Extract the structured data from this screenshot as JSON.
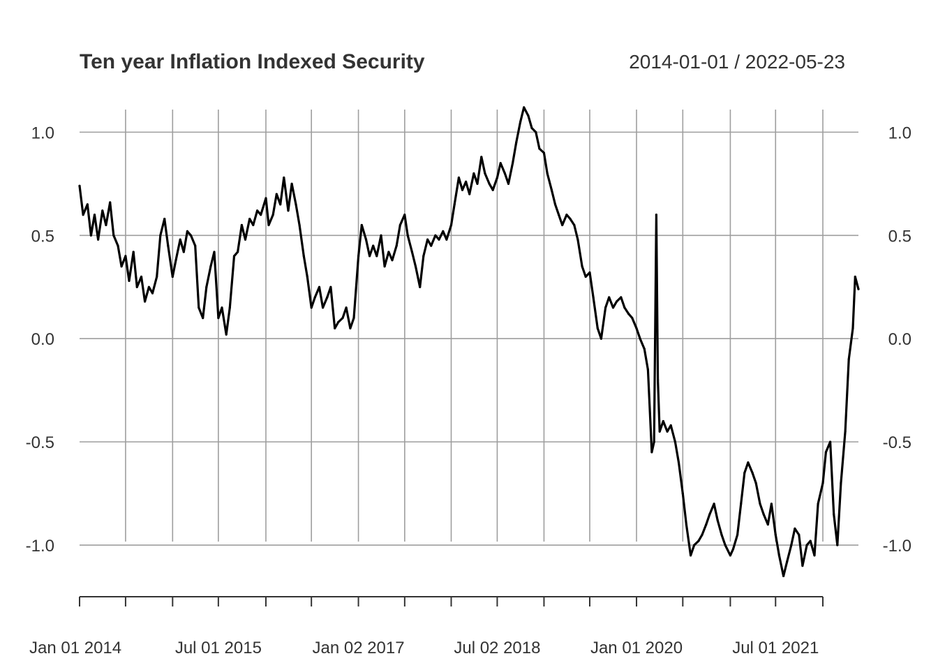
{
  "chart_data": {
    "type": "line",
    "title": "Ten year Inflation Indexed Security",
    "date_range_label": "2014-01-01 / 2022-05-23",
    "x_range": [
      "2014-01-01",
      "2022-05-23"
    ],
    "ylim": [
      -1.25,
      1.15
    ],
    "y_ticks": [
      {
        "value": 1.0,
        "label": "1.0"
      },
      {
        "value": 0.5,
        "label": "0.5"
      },
      {
        "value": 0.0,
        "label": "0.0"
      },
      {
        "value": -0.5,
        "label": "-0.5"
      },
      {
        "value": -1.0,
        "label": "-1.0"
      }
    ],
    "x_tick_dates": [
      "2014-01-01",
      "2014-07-01",
      "2015-01-02",
      "2015-07-01",
      "2016-01-04",
      "2016-07-01",
      "2017-01-02",
      "2017-07-03",
      "2018-01-02",
      "2018-07-02",
      "2019-01-02",
      "2019-07-01",
      "2020-01-01",
      "2020-07-01",
      "2021-01-04",
      "2021-07-01",
      "2022-01-03"
    ],
    "x_labels": [
      {
        "date": "2014-01-01",
        "label": "Jan 01 2014"
      },
      {
        "date": "2015-07-01",
        "label": "Jul 01 2015"
      },
      {
        "date": "2017-01-02",
        "label": "Jan 02 2017"
      },
      {
        "date": "2018-07-02",
        "label": "Jul 02 2018"
      },
      {
        "date": "2020-01-01",
        "label": "Jan 01 2020"
      },
      {
        "date": "2021-07-01",
        "label": "Jul 01 2021"
      }
    ],
    "grid": true,
    "series": [
      {
        "points": [
          [
            "2014-01-01",
            0.74
          ],
          [
            "2014-01-15",
            0.6
          ],
          [
            "2014-02-01",
            0.65
          ],
          [
            "2014-02-15",
            0.5
          ],
          [
            "2014-03-01",
            0.6
          ],
          [
            "2014-03-15",
            0.48
          ],
          [
            "2014-04-01",
            0.62
          ],
          [
            "2014-04-15",
            0.55
          ],
          [
            "2014-05-01",
            0.66
          ],
          [
            "2014-05-15",
            0.5
          ],
          [
            "2014-06-01",
            0.45
          ],
          [
            "2014-06-15",
            0.35
          ],
          [
            "2014-07-01",
            0.4
          ],
          [
            "2014-07-15",
            0.28
          ],
          [
            "2014-08-01",
            0.42
          ],
          [
            "2014-08-15",
            0.25
          ],
          [
            "2014-09-01",
            0.3
          ],
          [
            "2014-09-15",
            0.18
          ],
          [
            "2014-10-01",
            0.25
          ],
          [
            "2014-10-15",
            0.22
          ],
          [
            "2014-11-01",
            0.3
          ],
          [
            "2014-11-15",
            0.5
          ],
          [
            "2014-12-01",
            0.58
          ],
          [
            "2014-12-15",
            0.45
          ],
          [
            "2015-01-02",
            0.3
          ],
          [
            "2015-01-15",
            0.38
          ],
          [
            "2015-02-01",
            0.48
          ],
          [
            "2015-02-15",
            0.42
          ],
          [
            "2015-03-01",
            0.52
          ],
          [
            "2015-03-15",
            0.5
          ],
          [
            "2015-04-01",
            0.45
          ],
          [
            "2015-04-15",
            0.15
          ],
          [
            "2015-05-01",
            0.1
          ],
          [
            "2015-05-15",
            0.25
          ],
          [
            "2015-06-01",
            0.35
          ],
          [
            "2015-06-15",
            0.42
          ],
          [
            "2015-07-01",
            0.1
          ],
          [
            "2015-07-15",
            0.15
          ],
          [
            "2015-08-01",
            0.02
          ],
          [
            "2015-08-15",
            0.15
          ],
          [
            "2015-09-01",
            0.4
          ],
          [
            "2015-09-15",
            0.42
          ],
          [
            "2015-10-01",
            0.55
          ],
          [
            "2015-10-15",
            0.48
          ],
          [
            "2015-11-01",
            0.58
          ],
          [
            "2015-11-15",
            0.55
          ],
          [
            "2015-12-01",
            0.62
          ],
          [
            "2015-12-15",
            0.6
          ],
          [
            "2016-01-04",
            0.68
          ],
          [
            "2016-01-15",
            0.55
          ],
          [
            "2016-02-01",
            0.6
          ],
          [
            "2016-02-15",
            0.7
          ],
          [
            "2016-03-01",
            0.65
          ],
          [
            "2016-03-15",
            0.78
          ],
          [
            "2016-04-01",
            0.62
          ],
          [
            "2016-04-15",
            0.75
          ],
          [
            "2016-05-01",
            0.65
          ],
          [
            "2016-05-15",
            0.55
          ],
          [
            "2016-06-01",
            0.4
          ],
          [
            "2016-06-15",
            0.3
          ],
          [
            "2016-07-01",
            0.15
          ],
          [
            "2016-07-15",
            0.2
          ],
          [
            "2016-08-01",
            0.25
          ],
          [
            "2016-08-15",
            0.15
          ],
          [
            "2016-09-01",
            0.2
          ],
          [
            "2016-09-15",
            0.25
          ],
          [
            "2016-10-01",
            0.05
          ],
          [
            "2016-10-15",
            0.08
          ],
          [
            "2016-11-01",
            0.1
          ],
          [
            "2016-11-15",
            0.15
          ],
          [
            "2016-12-01",
            0.05
          ],
          [
            "2016-12-15",
            0.1
          ],
          [
            "2017-01-02",
            0.4
          ],
          [
            "2017-01-15",
            0.55
          ],
          [
            "2017-02-01",
            0.48
          ],
          [
            "2017-02-15",
            0.4
          ],
          [
            "2017-03-01",
            0.45
          ],
          [
            "2017-03-15",
            0.4
          ],
          [
            "2017-04-01",
            0.5
          ],
          [
            "2017-04-15",
            0.35
          ],
          [
            "2017-05-01",
            0.42
          ],
          [
            "2017-05-15",
            0.38
          ],
          [
            "2017-06-01",
            0.45
          ],
          [
            "2017-06-15",
            0.55
          ],
          [
            "2017-07-03",
            0.6
          ],
          [
            "2017-07-15",
            0.5
          ],
          [
            "2017-08-01",
            0.42
          ],
          [
            "2017-08-15",
            0.35
          ],
          [
            "2017-09-01",
            0.25
          ],
          [
            "2017-09-15",
            0.4
          ],
          [
            "2017-10-01",
            0.48
          ],
          [
            "2017-10-15",
            0.45
          ],
          [
            "2017-11-01",
            0.5
          ],
          [
            "2017-11-15",
            0.48
          ],
          [
            "2017-12-01",
            0.52
          ],
          [
            "2017-12-15",
            0.48
          ],
          [
            "2018-01-02",
            0.55
          ],
          [
            "2018-01-15",
            0.65
          ],
          [
            "2018-02-01",
            0.78
          ],
          [
            "2018-02-15",
            0.72
          ],
          [
            "2018-03-01",
            0.76
          ],
          [
            "2018-03-15",
            0.7
          ],
          [
            "2018-04-01",
            0.8
          ],
          [
            "2018-04-15",
            0.75
          ],
          [
            "2018-05-01",
            0.88
          ],
          [
            "2018-05-15",
            0.8
          ],
          [
            "2018-06-01",
            0.75
          ],
          [
            "2018-06-15",
            0.72
          ],
          [
            "2018-07-02",
            0.78
          ],
          [
            "2018-07-15",
            0.85
          ],
          [
            "2018-08-01",
            0.8
          ],
          [
            "2018-08-15",
            0.75
          ],
          [
            "2018-09-01",
            0.85
          ],
          [
            "2018-09-15",
            0.95
          ],
          [
            "2018-10-01",
            1.05
          ],
          [
            "2018-10-15",
            1.12
          ],
          [
            "2018-11-01",
            1.08
          ],
          [
            "2018-11-15",
            1.02
          ],
          [
            "2018-12-01",
            1.0
          ],
          [
            "2018-12-15",
            0.92
          ],
          [
            "2019-01-02",
            0.9
          ],
          [
            "2019-01-15",
            0.8
          ],
          [
            "2019-02-01",
            0.72
          ],
          [
            "2019-02-15",
            0.65
          ],
          [
            "2019-03-01",
            0.6
          ],
          [
            "2019-03-15",
            0.55
          ],
          [
            "2019-04-01",
            0.6
          ],
          [
            "2019-04-15",
            0.58
          ],
          [
            "2019-05-01",
            0.55
          ],
          [
            "2019-05-15",
            0.48
          ],
          [
            "2019-06-01",
            0.35
          ],
          [
            "2019-06-15",
            0.3
          ],
          [
            "2019-07-01",
            0.32
          ],
          [
            "2019-07-15",
            0.2
          ],
          [
            "2019-08-01",
            0.05
          ],
          [
            "2019-08-15",
            0.0
          ],
          [
            "2019-09-01",
            0.15
          ],
          [
            "2019-09-15",
            0.2
          ],
          [
            "2019-10-01",
            0.15
          ],
          [
            "2019-10-15",
            0.18
          ],
          [
            "2019-11-01",
            0.2
          ],
          [
            "2019-11-15",
            0.15
          ],
          [
            "2019-12-01",
            0.12
          ],
          [
            "2019-12-15",
            0.1
          ],
          [
            "2020-01-01",
            0.05
          ],
          [
            "2020-01-15",
            0.0
          ],
          [
            "2020-02-01",
            -0.05
          ],
          [
            "2020-02-15",
            -0.15
          ],
          [
            "2020-03-01",
            -0.55
          ],
          [
            "2020-03-10",
            -0.5
          ],
          [
            "2020-03-19",
            0.6
          ],
          [
            "2020-03-25",
            -0.2
          ],
          [
            "2020-04-01",
            -0.45
          ],
          [
            "2020-04-15",
            -0.4
          ],
          [
            "2020-05-01",
            -0.45
          ],
          [
            "2020-05-15",
            -0.42
          ],
          [
            "2020-06-01",
            -0.5
          ],
          [
            "2020-06-15",
            -0.6
          ],
          [
            "2020-07-01",
            -0.75
          ],
          [
            "2020-07-15",
            -0.9
          ],
          [
            "2020-08-01",
            -1.05
          ],
          [
            "2020-08-15",
            -1.0
          ],
          [
            "2020-09-01",
            -0.98
          ],
          [
            "2020-09-15",
            -0.95
          ],
          [
            "2020-10-01",
            -0.9
          ],
          [
            "2020-10-15",
            -0.85
          ],
          [
            "2020-11-01",
            -0.8
          ],
          [
            "2020-11-15",
            -0.88
          ],
          [
            "2020-12-01",
            -0.95
          ],
          [
            "2020-12-15",
            -1.0
          ],
          [
            "2021-01-04",
            -1.05
          ],
          [
            "2021-01-15",
            -1.02
          ],
          [
            "2021-02-01",
            -0.95
          ],
          [
            "2021-02-15",
            -0.8
          ],
          [
            "2021-03-01",
            -0.65
          ],
          [
            "2021-03-15",
            -0.6
          ],
          [
            "2021-04-01",
            -0.65
          ],
          [
            "2021-04-15",
            -0.7
          ],
          [
            "2021-05-01",
            -0.8
          ],
          [
            "2021-05-15",
            -0.85
          ],
          [
            "2021-06-01",
            -0.9
          ],
          [
            "2021-06-15",
            -0.8
          ],
          [
            "2021-07-01",
            -0.95
          ],
          [
            "2021-07-15",
            -1.05
          ],
          [
            "2021-08-01",
            -1.15
          ],
          [
            "2021-08-15",
            -1.08
          ],
          [
            "2021-09-01",
            -1.0
          ],
          [
            "2021-09-15",
            -0.92
          ],
          [
            "2021-10-01",
            -0.95
          ],
          [
            "2021-10-15",
            -1.1
          ],
          [
            "2021-11-01",
            -1.0
          ],
          [
            "2021-11-15",
            -0.98
          ],
          [
            "2021-12-01",
            -1.05
          ],
          [
            "2021-12-15",
            -0.8
          ],
          [
            "2022-01-03",
            -0.7
          ],
          [
            "2022-01-15",
            -0.55
          ],
          [
            "2022-02-01",
            -0.5
          ],
          [
            "2022-02-15",
            -0.85
          ],
          [
            "2022-03-01",
            -1.0
          ],
          [
            "2022-03-15",
            -0.7
          ],
          [
            "2022-04-01",
            -0.45
          ],
          [
            "2022-04-15",
            -0.1
          ],
          [
            "2022-05-01",
            0.05
          ],
          [
            "2022-05-10",
            0.3
          ],
          [
            "2022-05-23",
            0.24
          ]
        ]
      }
    ]
  }
}
